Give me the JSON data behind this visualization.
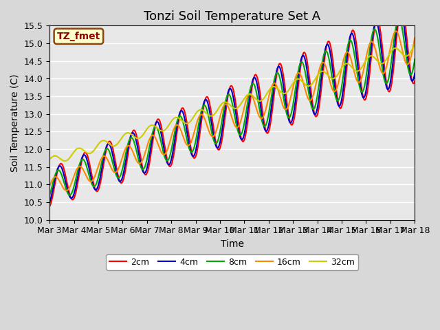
{
  "title": "Tonzi Soil Temperature Set A",
  "xlabel": "Time",
  "ylabel": "Soil Temperature (C)",
  "ylim": [
    10.0,
    15.5
  ],
  "xtick_labels": [
    "Mar 3",
    "Mar 4",
    "Mar 5",
    "Mar 6",
    "Mar 7",
    "Mar 8",
    "Mar 9",
    "Mar 10",
    "Mar 11",
    "Mar 12",
    "Mar 13",
    "Mar 14",
    "Mar 15",
    "Mar 16",
    "Mar 17",
    "Mar 18"
  ],
  "legend_label": "TZ_fmet",
  "legend_bg": "#ffffcc",
  "legend_edge": "#8B4513",
  "line_colors": [
    "#ff0000",
    "#0000cc",
    "#00aa00",
    "#ff8800",
    "#cccc00"
  ],
  "line_labels": [
    "2cm",
    "4cm",
    "8cm",
    "16cm",
    "32cm"
  ],
  "line_widths": [
    1.5,
    1.5,
    1.5,
    1.5,
    1.5
  ],
  "plot_bg": "#e8e8e8",
  "grid_color": "#ffffff",
  "title_fontsize": 13,
  "label_fontsize": 10,
  "tick_fontsize": 9
}
